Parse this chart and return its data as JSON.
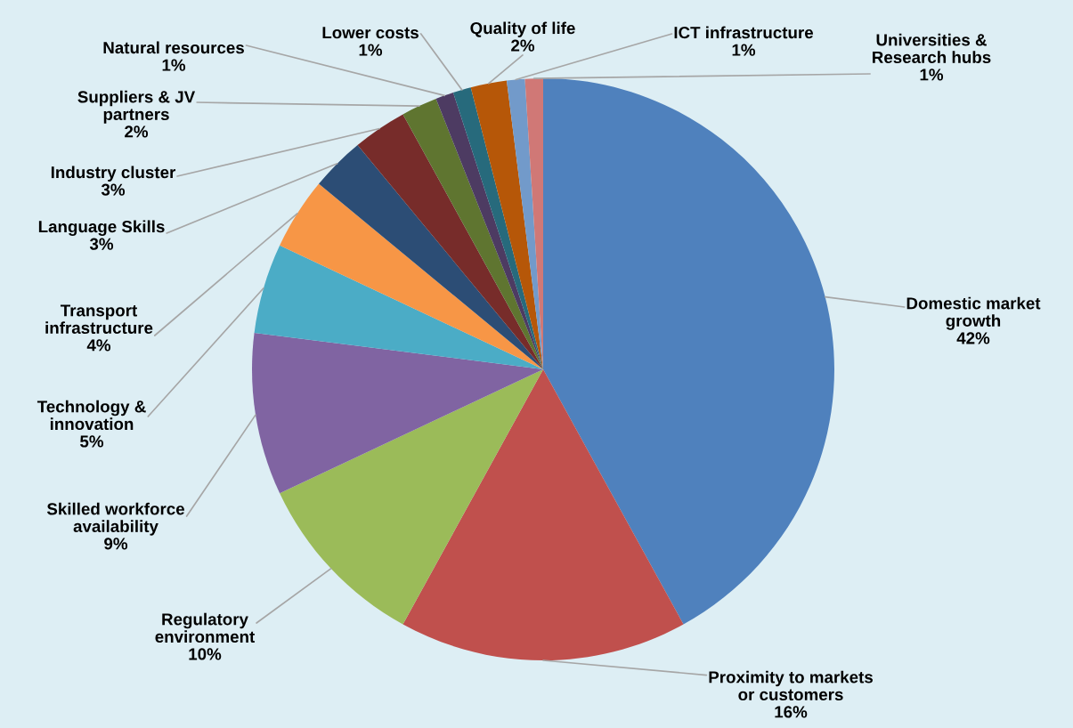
{
  "chart_data": {
    "type": "pie",
    "categories": [
      "Domestic market growth",
      "Proximity to markets or customers",
      "Regulatory environment",
      "Skilled workforce availability",
      "Technology & innovation",
      "Transport infrastructure",
      "Language Skills",
      "Industry cluster",
      "Suppliers & JV partners",
      "Natural resources",
      "Lower costs",
      "Quality of life",
      "ICT infrastructure",
      "Universities & Research hubs"
    ],
    "values": [
      42,
      16,
      10,
      9,
      5,
      4,
      3,
      3,
      2,
      1,
      1,
      2,
      1,
      1
    ],
    "value_labels": [
      "42%",
      "16%",
      "10%",
      "9%",
      "5%",
      "4%",
      "3%",
      "3%",
      "2%",
      "1%",
      "1%",
      "2%",
      "1%",
      "1%"
    ],
    "colors": [
      "#4f81bd",
      "#c0504d",
      "#9bbb59",
      "#8064a2",
      "#4bacc6",
      "#f79646",
      "#2c4d75",
      "#772c2a",
      "#5f7530",
      "#4d3b62",
      "#276a7c",
      "#b65708",
      "#729aca",
      "#d07876"
    ],
    "legend": false
  }
}
